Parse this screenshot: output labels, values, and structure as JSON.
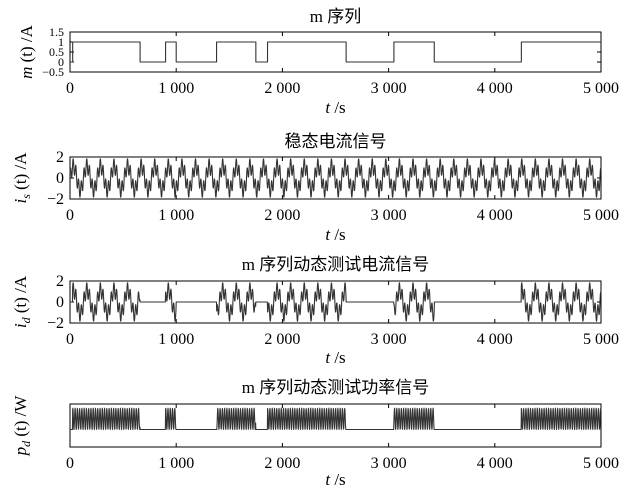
{
  "chart_data": [
    {
      "type": "line",
      "title": "m 序列",
      "xlabel": "t /s",
      "ylabel": "m (t) /A",
      "xlim": [
        0,
        5000
      ],
      "ylim": [
        -0.5,
        1.5
      ],
      "xticks": [
        0,
        1000,
        2000,
        3000,
        4000,
        5000
      ],
      "xtick_labels": [
        "0",
        "1 000",
        "2 000",
        "3 000",
        "4 000",
        "5 000"
      ],
      "yticks": [
        1.5,
        1,
        0.5,
        0,
        -0.5
      ],
      "ytick_labels": [
        "1.5",
        "1",
        "0.5",
        "0",
        "−0.5"
      ],
      "series": [
        {
          "x": [
            0,
            25,
            25,
            660,
            660,
            900,
            900,
            1000,
            1000,
            1380,
            1380,
            1750,
            1750,
            1860,
            1860,
            2600,
            2600,
            3050,
            3050,
            3430,
            3430,
            4250,
            4250,
            5000
          ],
          "y": [
            0,
            0,
            1,
            1,
            0,
            0,
            1,
            1,
            0,
            0,
            1,
            1,
            0,
            0,
            1,
            1,
            0,
            0,
            1,
            1,
            0,
            0,
            1,
            1
          ]
        }
      ]
    },
    {
      "type": "line",
      "title": "稳态电流信号",
      "xlabel": "t /s",
      "ylabel": "i_s (t) /A",
      "xlim": [
        0,
        5000
      ],
      "ylim": [
        -2,
        2
      ],
      "xticks": [
        0,
        1000,
        2000,
        3000,
        4000,
        5000
      ],
      "xtick_labels": [
        "0",
        "1 000",
        "2 000",
        "3 000",
        "4 000",
        "5 000"
      ],
      "yticks": [
        2,
        0,
        -2
      ],
      "ytick_labels": [
        "2",
        "0",
        "−2"
      ],
      "signal": {
        "amplitude": 1.6,
        "period": 128,
        "gated_by": "none"
      }
    },
    {
      "type": "line",
      "title": "m 序列动态测试电流信号",
      "xlabel": "t /s",
      "ylabel": "i_d (t) /A",
      "xlim": [
        0,
        5000
      ],
      "ylim": [
        -2,
        2
      ],
      "xticks": [
        0,
        1000,
        2000,
        3000,
        4000,
        5000
      ],
      "xtick_labels": [
        "0",
        "1 000",
        "2 000",
        "3 000",
        "4 000",
        "5 000"
      ],
      "yticks": [
        2,
        0,
        -2
      ],
      "ytick_labels": [
        "2",
        "0",
        "−2"
      ],
      "signal": {
        "amplitude": 1.6,
        "period": 128,
        "gated_by": "m"
      }
    },
    {
      "type": "line",
      "title": "m 序列动态测试功率信号",
      "xlabel": "t /s",
      "ylabel": "p_d (t) /W",
      "xlim": [
        0,
        5000
      ],
      "xticks": [
        0,
        1000,
        2000,
        3000,
        4000,
        5000
      ],
      "xtick_labels": [
        "0",
        "1 000",
        "2 000",
        "3 000",
        "4 000",
        "5 000"
      ],
      "signal": {
        "amplitude": 1,
        "period": 64,
        "gated_by": "m"
      }
    }
  ]
}
